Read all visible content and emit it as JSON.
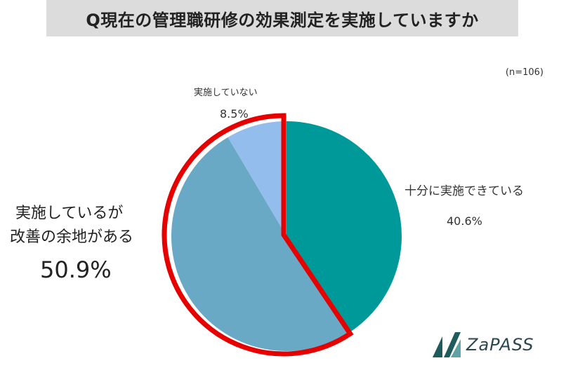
{
  "title": "Q現在の管理職研修の効果測定を実施していますか",
  "sample_size": "(n=106)",
  "chart_data": {
    "type": "pie",
    "slices": [
      {
        "name": "十分に実施できている",
        "value": 40.6,
        "label": "40.6%",
        "color": "#00999a"
      },
      {
        "name": "実施しているが改善の余地がある",
        "value": 50.9,
        "label": "50.9%",
        "color": "#6aa9c6"
      },
      {
        "name": "実施していない",
        "value": 8.5,
        "label": "8.5%",
        "color": "#93bdec"
      }
    ],
    "highlight": {
      "slices": [
        "実施しているが改善の余地がある",
        "実施していない"
      ],
      "color": "#e60000"
    }
  },
  "labels": {
    "not_name": "実施していない",
    "not_value": "8.5%",
    "full_name": "十分に実施できている",
    "full_value": "40.6%",
    "room_name_line1": "実施しているが",
    "room_name_line2": "改善の余地がある",
    "room_value": "50.9%"
  },
  "logo": {
    "text": "ZaPASS",
    "color": "#2b4850"
  }
}
